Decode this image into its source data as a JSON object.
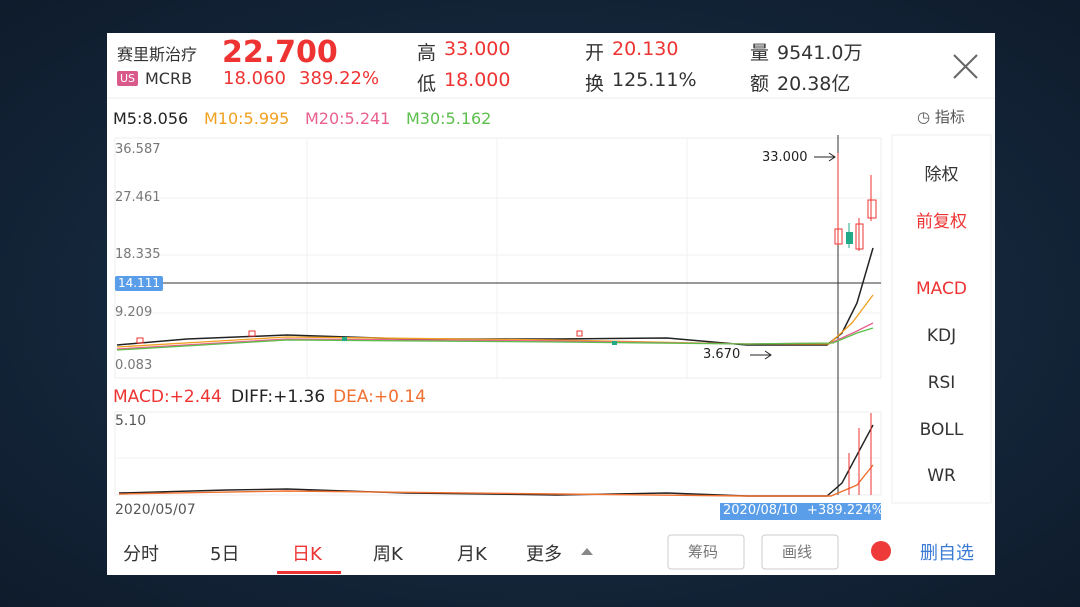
{
  "header": {
    "name": "赛里斯治疗",
    "price": "22.700",
    "market": "US",
    "ticker": "MCRB",
    "change": "18.060",
    "change_pct": "389.22%",
    "stats": [
      {
        "label": "高",
        "value": "33.000"
      },
      {
        "label": "低",
        "value": "18.000"
      },
      {
        "label": "开",
        "value": "20.130"
      },
      {
        "label": "换",
        "value": "125.11%"
      },
      {
        "label": "量",
        "value": "9541.0万"
      },
      {
        "label": "额",
        "value": "20.38亿"
      }
    ]
  },
  "ma": [
    "M5:8.056",
    "M10:5.995",
    "M20:5.241",
    "M30:5.162"
  ],
  "indicator_button": "指标",
  "price_axis": [
    "36.587",
    "27.461",
    "18.335",
    "9.209",
    "0.083"
  ],
  "crosshair_price": "14.111",
  "high_note": "33.000",
  "low_note": "3.670",
  "macd_header": [
    "MACD:+2.44",
    "DIFF:+1.36",
    "DEA:+0.14"
  ],
  "macd_axis": "5.10",
  "start_date": "2020/05/07",
  "cursor_date": "2020/08/10",
  "cursor_change": "+389.224%",
  "side_menu": [
    "除权",
    "前复权",
    "MACD",
    "KDJ",
    "RSI",
    "BOLL",
    "WR"
  ],
  "tabs": [
    "分时",
    "5日",
    "日K",
    "周K",
    "月K",
    "更多"
  ],
  "buttons": [
    "筹码",
    "画线",
    "删自选"
  ]
}
